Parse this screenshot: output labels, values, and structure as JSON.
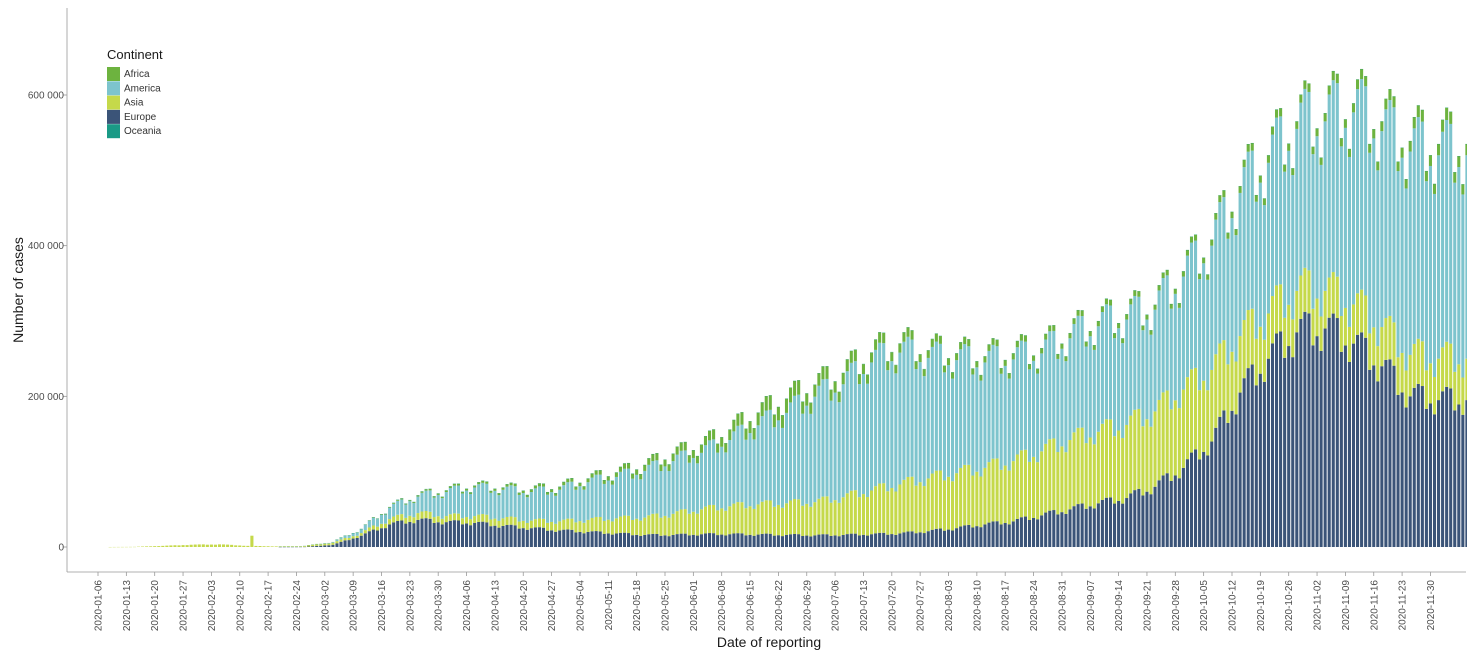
{
  "chart_data": {
    "type": "bar",
    "stacked": true,
    "title": "",
    "xlabel": "Date of reporting",
    "ylabel": "Number of cases",
    "ylim": [
      0,
      700000
    ],
    "y_ticks": [
      0,
      200000,
      400000,
      600000
    ],
    "y_tick_labels": [
      "0",
      "200 000",
      "400 000",
      "600 000"
    ],
    "x_start_date": "2020-01-01",
    "x_end_date": "2020-12-14",
    "x_tick_labels": [
      "2020-01-06",
      "2020-01-13",
      "2020-01-20",
      "2020-01-27",
      "2020-02-03",
      "2020-02-10",
      "2020-02-17",
      "2020-02-24",
      "2020-03-02",
      "2020-03-09",
      "2020-03-16",
      "2020-03-23",
      "2020-03-30",
      "2020-04-06",
      "2020-04-13",
      "2020-04-20",
      "2020-04-27",
      "2020-05-04",
      "2020-05-11",
      "2020-05-18",
      "2020-05-25",
      "2020-06-01",
      "2020-06-08",
      "2020-06-15",
      "2020-06-22",
      "2020-06-29",
      "2020-07-06",
      "2020-07-13",
      "2020-07-20",
      "2020-07-27",
      "2020-08-03",
      "2020-08-10",
      "2020-08-17",
      "2020-08-24",
      "2020-08-31",
      "2020-09-07",
      "2020-09-14",
      "2020-09-21",
      "2020-09-28",
      "2020-10-05",
      "2020-10-12",
      "2020-10-19",
      "2020-10-26",
      "2020-11-02",
      "2020-11-09",
      "2020-11-16",
      "2020-11-23",
      "2020-11-30"
    ],
    "legend": {
      "title": "Continent",
      "position": "top-left"
    },
    "grid": false,
    "series": [
      {
        "name": "Europe",
        "color": "#3b5478",
        "weekly": [
          0,
          0,
          0,
          0,
          0,
          0,
          0,
          0,
          200,
          3000,
          15000,
          30000,
          36000,
          33000,
          32000,
          28000,
          25000,
          22000,
          20000,
          18000,
          16000,
          16000,
          17000,
          17000,
          16500,
          16000,
          15500,
          16000,
          17000,
          18000,
          21000,
          25000,
          30000,
          34000,
          42000,
          50000,
          58000,
          65000,
          80000,
          105000,
          140000,
          205000,
          250000,
          285000,
          290000,
          270000,
          240000,
          200000,
          195000
        ]
      },
      {
        "name": "Asia",
        "color": "#c5d94a",
        "weekly": [
          0,
          0,
          200,
          1500,
          3000,
          3500,
          1500,
          800,
          1200,
          2500,
          3500,
          7000,
          9000,
          8000,
          9000,
          10000,
          10000,
          12000,
          16000,
          20000,
          23000,
          28000,
          33000,
          37000,
          40000,
          42000,
          44000,
          50000,
          58000,
          65000,
          70000,
          73000,
          75000,
          80000,
          85000,
          92000,
          95000,
          97000,
          100000,
          104000,
          95000,
          75000,
          60000,
          55000,
          50000,
          52000,
          52000,
          55000,
          55000
        ]
      },
      {
        "name": "America",
        "color": "#7dc4cd",
        "weekly": [
          0,
          0,
          0,
          0,
          0,
          0,
          0,
          0,
          200,
          1000,
          5000,
          15000,
          22000,
          32000,
          38000,
          38000,
          38000,
          42000,
          50000,
          55000,
          62000,
          70000,
          75000,
          88000,
          105000,
          120000,
          140000,
          150000,
          170000,
          175000,
          160000,
          150000,
          140000,
          135000,
          130000,
          135000,
          140000,
          140000,
          135000,
          150000,
          165000,
          190000,
          200000,
          215000,
          225000,
          255000,
          260000,
          270000,
          270000
        ]
      },
      {
        "name": "Africa",
        "color": "#6db33f",
        "weekly": [
          0,
          0,
          0,
          0,
          0,
          0,
          0,
          0,
          0,
          200,
          500,
          1000,
          1500,
          2000,
          2500,
          3000,
          3500,
          4000,
          5000,
          6000,
          8000,
          10000,
          11000,
          14000,
          17000,
          19000,
          16000,
          15000,
          13000,
          12000,
          10000,
          9000,
          8000,
          8000,
          7000,
          7000,
          7000,
          7000,
          6500,
          7000,
          8000,
          9000,
          10000,
          10000,
          11000,
          12000,
          13000,
          14000,
          15000
        ]
      },
      {
        "name": "Oceania",
        "color": "#1a9a86",
        "weekly": [
          0,
          0,
          0,
          0,
          0,
          0,
          0,
          0,
          0,
          0,
          50,
          200,
          400,
          300,
          150,
          80,
          40,
          30,
          20,
          20,
          20,
          30,
          30,
          30,
          40,
          80,
          120,
          250,
          400,
          400,
          350,
          300,
          250,
          200,
          150,
          100,
          50,
          30,
          30,
          20,
          20,
          20,
          20,
          20,
          20,
          20,
          20,
          20,
          20
        ]
      }
    ],
    "weekday_factor": [
      0.97,
      0.9,
      1.0,
      1.06,
      1.09,
      1.08,
      0.93
    ],
    "annotations": [
      {
        "date": "2020-02-13",
        "series": "Asia",
        "value": 15000
      }
    ]
  }
}
